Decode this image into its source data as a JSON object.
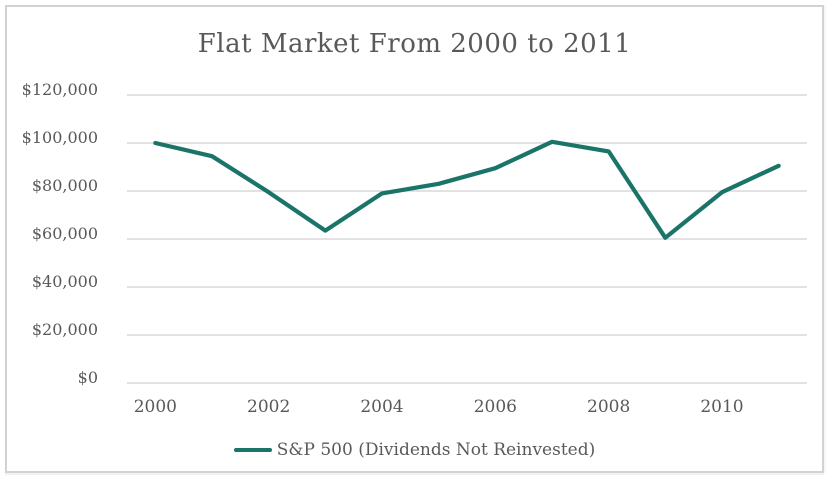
{
  "window": {
    "background_color": "#ffffff",
    "frame_border_color": "#d2d2d2"
  },
  "chart_data": {
    "type": "line",
    "title": "Flat Market From 2000 to 2011",
    "x": [
      2000,
      2001,
      2002,
      2003,
      2004,
      2005,
      2006,
      2007,
      2008,
      2009,
      2010,
      2011
    ],
    "series": [
      {
        "name": "S&P 500 (Dividends Not Reinvested)",
        "values": [
          100000,
          94500,
          79500,
          63500,
          79000,
          83000,
          89500,
          100500,
          96500,
          60500,
          79500,
          90500
        ]
      }
    ],
    "xlabel": "",
    "ylabel": "",
    "ylim": [
      0,
      120000
    ],
    "y_ticks": [
      0,
      20000,
      40000,
      60000,
      80000,
      100000,
      120000
    ],
    "y_tick_labels": [
      "$0",
      "$20,000",
      "$40,000",
      "$60,000",
      "$80,000",
      "$100,000",
      "$120,000"
    ],
    "x_tick_years": [
      2000,
      2002,
      2004,
      2006,
      2008,
      2010
    ],
    "x_tick_labels": [
      "2000",
      "2002",
      "2004",
      "2006",
      "2008",
      "2010"
    ],
    "grid": "horizontal-only",
    "legend_position": "bottom-center",
    "line_color": "#1a7468",
    "gridline_color": "#d9d9d9",
    "text_color": "#595959"
  }
}
